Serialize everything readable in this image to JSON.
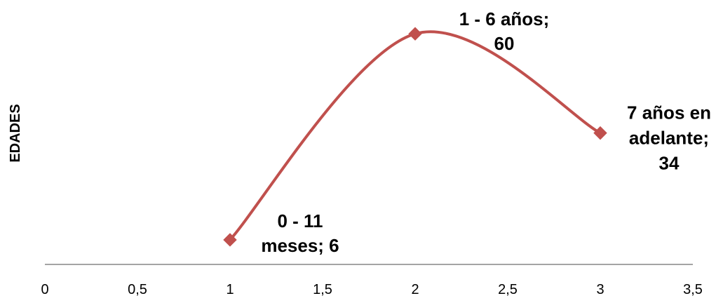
{
  "chart_data": {
    "type": "line",
    "title": "",
    "xlabel": "",
    "ylabel": "EDADES",
    "x_ticks": [
      "0",
      "0,5",
      "1",
      "1,5",
      "2",
      "2,5",
      "3",
      "3,5"
    ],
    "x_tick_values": [
      0,
      0.5,
      1,
      1.5,
      2,
      2.5,
      3,
      3.5
    ],
    "xlim": [
      0,
      3.5
    ],
    "ylim": [
      0,
      70
    ],
    "grid": false,
    "smooth": true,
    "series": [
      {
        "color": "#c0504d",
        "marker": "diamond",
        "points": [
          {
            "x": 1,
            "y": 6,
            "label": [
              "0 - 11",
              "meses; 6"
            ]
          },
          {
            "x": 2,
            "y": 60,
            "label": [
              "1 - 6 años;",
              "60"
            ]
          },
          {
            "x": 3,
            "y": 34,
            "label": [
              "7 años en",
              "adelante;",
              "34"
            ]
          }
        ]
      }
    ]
  }
}
